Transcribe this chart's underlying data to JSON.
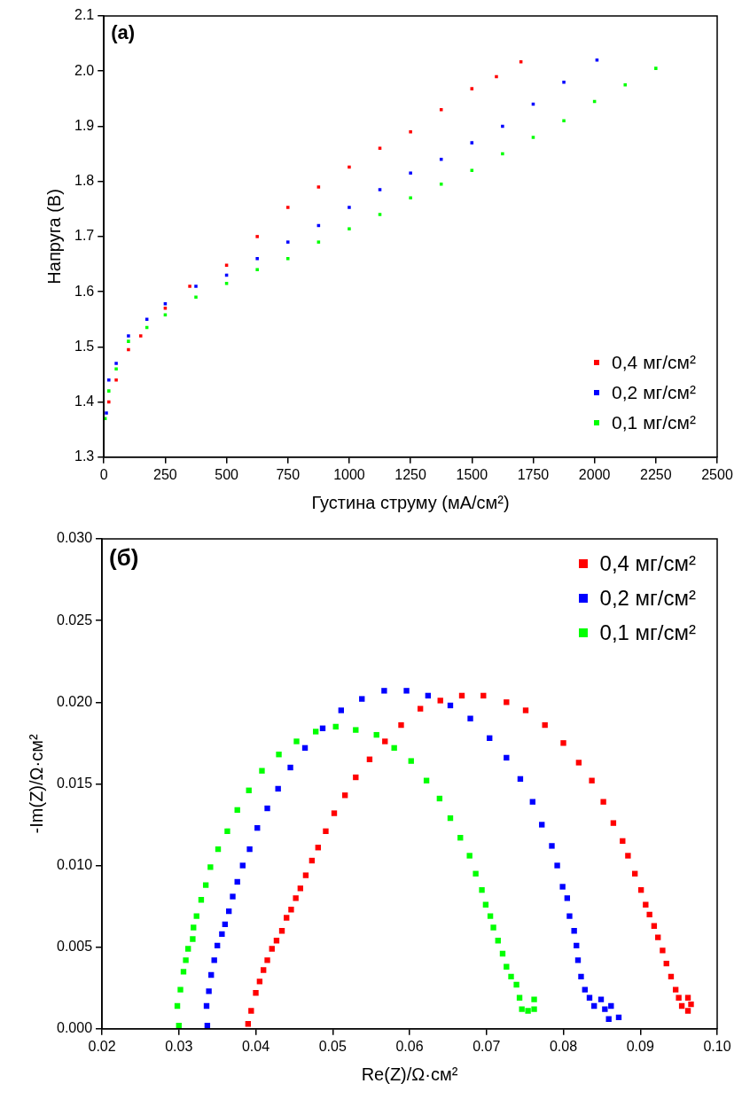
{
  "chart_data": [
    {
      "type": "scatter",
      "annotations": [
        "(a)"
      ],
      "xlabel": "Густина струму (мА/см²)",
      "ylabel": "Напруга (В)",
      "xlim": [
        0,
        2500
      ],
      "xticks": [
        0,
        250,
        500,
        750,
        1000,
        1250,
        1500,
        1750,
        2000,
        2250,
        2500
      ],
      "ylim": [
        1.3,
        2.1
      ],
      "yticks": [
        1.3,
        1.4,
        1.5,
        1.6,
        1.7,
        1.8,
        1.9,
        {
          "value": 2,
          "label": "2.0"
        },
        2.1
      ],
      "grid": false,
      "legend": "bottom right",
      "marker": "square",
      "series": [
        {
          "name": "0,4 мг/см²",
          "color": "#ff0000",
          "x": [
            20,
            50,
            100,
            150,
            250,
            350,
            500,
            625,
            750,
            875,
            1000,
            1125,
            1250,
            1375,
            1500,
            1600,
            1700
          ],
          "values": [
            1.4,
            1.44,
            1.495,
            1.52,
            1.57,
            1.61,
            1.648,
            1.7,
            1.753,
            1.79,
            1.826,
            1.86,
            1.89,
            1.93,
            1.968,
            1.99,
            2.017
          ]
        },
        {
          "name": "0,2 мг/см²",
          "color": "#0000ff",
          "x": [
            10,
            20,
            50,
            100,
            175,
            250,
            375,
            500,
            625,
            750,
            875,
            1000,
            1125,
            1250,
            1375,
            1500,
            1625,
            1750,
            1875,
            2010
          ],
          "values": [
            1.38,
            1.44,
            1.47,
            1.52,
            1.55,
            1.578,
            1.61,
            1.63,
            1.66,
            1.69,
            1.72,
            1.753,
            1.785,
            1.815,
            1.84,
            1.87,
            1.9,
            1.94,
            1.98,
            2.02
          ]
        },
        {
          "name": "0,1 мг/см²",
          "color": "#00ff00",
          "x": [
            5,
            20,
            50,
            100,
            175,
            250,
            375,
            500,
            625,
            750,
            875,
            1000,
            1125,
            1250,
            1375,
            1500,
            1625,
            1750,
            1875,
            2000,
            2125,
            2250
          ],
          "values": [
            1.37,
            1.42,
            1.46,
            1.51,
            1.535,
            1.558,
            1.59,
            1.615,
            1.64,
            1.66,
            1.69,
            1.714,
            1.74,
            1.77,
            1.795,
            1.82,
            1.85,
            1.88,
            1.91,
            1.945,
            1.975,
            2.005
          ]
        }
      ]
    },
    {
      "type": "scatter",
      "annotations": [
        "(б)"
      ],
      "xlabel": "Re(Z)/Ω·см²",
      "ylabel": "-Im(Z)/Ω·см²",
      "xlim": [
        0.02,
        0.1
      ],
      "xticks": [
        0.02,
        0.03,
        0.04,
        0.05,
        0.06,
        0.07,
        0.08,
        0.09,
        {
          "value": 0.1,
          "label": "0.10"
        }
      ],
      "ylim": [
        0,
        0.03
      ],
      "yticks": [
        {
          "value": 0,
          "label": "0.000"
        },
        0.005,
        {
          "value": 0.01,
          "label": "0.010"
        },
        0.015,
        {
          "value": 0.02,
          "label": "0.020"
        },
        0.025,
        {
          "value": 0.03,
          "label": "0.030"
        }
      ],
      "grid": false,
      "legend": "top right",
      "marker": "square",
      "series": [
        {
          "name": "0,4 мг/см²",
          "color": "#ff0000",
          "x": [
            0.039,
            0.0394,
            0.04,
            0.0405,
            0.041,
            0.0415,
            0.0421,
            0.0427,
            0.0434,
            0.044,
            0.0446,
            0.0452,
            0.0458,
            0.0465,
            0.0473,
            0.0481,
            0.0491,
            0.0502,
            0.0516,
            0.053,
            0.0548,
            0.0568,
            0.0589,
            0.0614,
            0.064,
            0.0668,
            0.0696,
            0.0726,
            0.0751,
            0.0776,
            0.08,
            0.082,
            0.0837,
            0.0852,
            0.0865,
            0.0877,
            0.0884,
            0.0893,
            0.0901,
            0.0907,
            0.0912,
            0.0918,
            0.0923,
            0.0929,
            0.0934,
            0.094,
            0.0946,
            0.095,
            0.0954,
            0.0962,
            0.0962,
            0.0966
          ],
          "values": [
            0.0003,
            0.0011,
            0.0022,
            0.0029,
            0.0036,
            0.0042,
            0.0049,
            0.0054,
            0.006,
            0.0068,
            0.0073,
            0.008,
            0.0086,
            0.0094,
            0.0103,
            0.0111,
            0.0121,
            0.0132,
            0.0143,
            0.0154,
            0.0165,
            0.0176,
            0.0186,
            0.0196,
            0.0201,
            0.0204,
            0.0204,
            0.02,
            0.0195,
            0.0186,
            0.0175,
            0.0163,
            0.0152,
            0.0139,
            0.0126,
            0.0115,
            0.0106,
            0.0095,
            0.0085,
            0.0076,
            0.007,
            0.0063,
            0.0056,
            0.0048,
            0.004,
            0.0032,
            0.0024,
            0.0019,
            0.0014,
            0.0011,
            0.0019,
            0.0015
          ]
        },
        {
          "name": "0,2 мг/см²",
          "color": "#0000ff",
          "x": [
            0.0337,
            0.0336,
            0.0339,
            0.0342,
            0.0346,
            0.035,
            0.0356,
            0.036,
            0.0365,
            0.037,
            0.0376,
            0.0383,
            0.0392,
            0.0402,
            0.0415,
            0.0429,
            0.0445,
            0.0464,
            0.0487,
            0.0511,
            0.0538,
            0.0567,
            0.0596,
            0.0624,
            0.0653,
            0.0679,
            0.0704,
            0.0726,
            0.0744,
            0.076,
            0.0772,
            0.0785,
            0.0792,
            0.0799,
            0.0805,
            0.0808,
            0.0814,
            0.0817,
            0.0819,
            0.0823,
            0.0828,
            0.0834,
            0.084,
            0.0849,
            0.0854,
            0.0859,
            0.0862,
            0.0872
          ],
          "values": [
            0.0002,
            0.0014,
            0.0023,
            0.0033,
            0.0042,
            0.0051,
            0.0058,
            0.0064,
            0.0072,
            0.0081,
            0.009,
            0.01,
            0.011,
            0.0123,
            0.0135,
            0.0147,
            0.016,
            0.0172,
            0.0184,
            0.0195,
            0.0202,
            0.0207,
            0.0207,
            0.0204,
            0.0198,
            0.019,
            0.0178,
            0.0166,
            0.0153,
            0.0139,
            0.0125,
            0.0112,
            0.01,
            0.0087,
            0.008,
            0.0069,
            0.006,
            0.0051,
            0.0042,
            0.0032,
            0.0024,
            0.0019,
            0.0014,
            0.0018,
            0.0012,
            0.0006,
            0.0014,
            0.0007
          ]
        },
        {
          "name": "0,1 мг/см²",
          "color": "#00ff00",
          "x": [
            0.03,
            0.0298,
            0.0302,
            0.0306,
            0.0309,
            0.0312,
            0.0318,
            0.0319,
            0.0323,
            0.0329,
            0.0335,
            0.0341,
            0.0351,
            0.0363,
            0.0376,
            0.0391,
            0.0408,
            0.043,
            0.0453,
            0.0478,
            0.0504,
            0.053,
            0.0557,
            0.058,
            0.0602,
            0.0622,
            0.0639,
            0.0653,
            0.0666,
            0.0678,
            0.0686,
            0.0694,
            0.0699,
            0.0705,
            0.0709,
            0.0715,
            0.0721,
            0.0726,
            0.0732,
            0.0739,
            0.0743,
            0.0746,
            0.0754,
            0.0762,
            0.0762
          ],
          "values": [
            0.0002,
            0.0014,
            0.0024,
            0.0035,
            0.0042,
            0.0049,
            0.0055,
            0.0062,
            0.0069,
            0.0079,
            0.0088,
            0.0099,
            0.011,
            0.0121,
            0.0134,
            0.0146,
            0.0158,
            0.0168,
            0.0176,
            0.0182,
            0.0185,
            0.0183,
            0.018,
            0.0172,
            0.0164,
            0.0152,
            0.0141,
            0.0129,
            0.0117,
            0.0106,
            0.0095,
            0.0085,
            0.0076,
            0.0069,
            0.0062,
            0.0054,
            0.0046,
            0.0038,
            0.0032,
            0.0027,
            0.0019,
            0.0012,
            0.0011,
            0.0018,
            0.0012
          ]
        }
      ]
    }
  ]
}
